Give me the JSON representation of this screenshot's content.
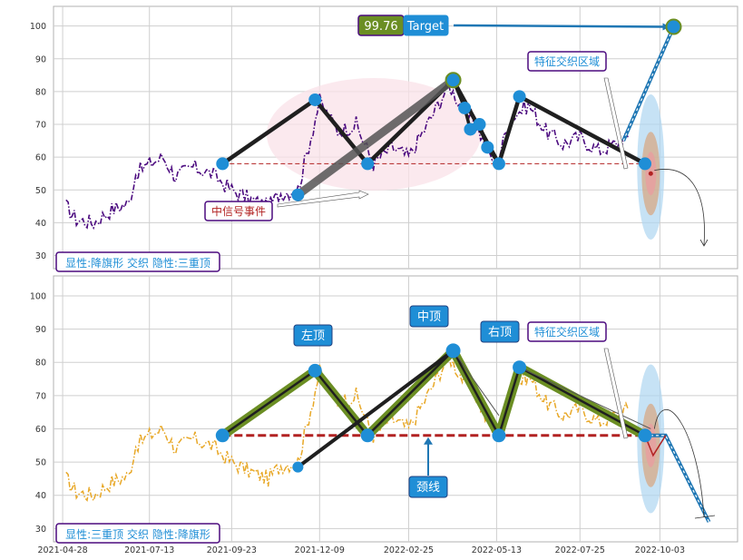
{
  "colors": {
    "plot_bg": "#ffffff",
    "grid": "#cfcfcf",
    "frame": "#b0b0b0",
    "top_price": "#4b0a7f",
    "bottom_price": "#e8a828",
    "pattern_line": "#1f1f1f",
    "pattern_highlight": "#6b8e23",
    "node": "#1f8ed6",
    "neckline": "#b22222",
    "target_arrow": "#1f77b4",
    "label_border": "#4b0a7f",
    "label_text_blue": "#1f8ed6",
    "label_text_red": "#b22222",
    "zone_blue": "#aed6f1",
    "zone_red": "#e6a0a0",
    "ellipse_pink": "#f9e1e8"
  },
  "chart_data": [
    {
      "type": "line",
      "panel": "top",
      "x_dates": [
        "2021-04-28",
        "2021-07-13",
        "2021-09-23",
        "2021-12-09",
        "2022-02-25",
        "2022-05-13",
        "2022-07-25",
        "2022-10-03"
      ],
      "x_tick_labels": [
        "2021-04-28",
        "2021-07-13",
        "2021-09-23",
        "2021-12-09",
        "2022-02-25",
        "2022-05-13",
        "2022-07-25",
        "2022-10-03"
      ],
      "ylim": [
        26,
        106
      ],
      "y_ticks": [
        30,
        40,
        50,
        60,
        70,
        80,
        90,
        100
      ],
      "grid": true,
      "series_price": [
        {
          "x": "2021-05-01",
          "y": 45
        },
        {
          "x": "2021-05-10",
          "y": 41
        },
        {
          "x": "2021-05-25",
          "y": 40
        },
        {
          "x": "2021-06-10",
          "y": 44
        },
        {
          "x": "2021-06-25",
          "y": 46
        },
        {
          "x": "2021-07-01",
          "y": 55
        },
        {
          "x": "2021-07-13",
          "y": 58
        },
        {
          "x": "2021-07-25",
          "y": 60
        },
        {
          "x": "2021-08-05",
          "y": 54
        },
        {
          "x": "2021-08-20",
          "y": 57
        },
        {
          "x": "2021-09-05",
          "y": 55
        },
        {
          "x": "2021-09-23",
          "y": 50
        },
        {
          "x": "2021-10-10",
          "y": 47
        },
        {
          "x": "2021-10-25",
          "y": 45
        },
        {
          "x": "2021-11-05",
          "y": 49
        },
        {
          "x": "2021-11-20",
          "y": 50
        },
        {
          "x": "2021-12-09",
          "y": 77
        },
        {
          "x": "2021-12-25",
          "y": 68
        },
        {
          "x": "2022-01-10",
          "y": 70
        },
        {
          "x": "2022-01-25",
          "y": 58
        },
        {
          "x": "2022-02-10",
          "y": 63
        },
        {
          "x": "2022-02-25",
          "y": 60
        },
        {
          "x": "2022-03-15",
          "y": 71
        },
        {
          "x": "2022-04-01",
          "y": 82
        },
        {
          "x": "2022-04-15",
          "y": 74
        },
        {
          "x": "2022-04-25",
          "y": 70
        },
        {
          "x": "2022-05-05",
          "y": 62
        },
        {
          "x": "2022-05-13",
          "y": 58
        },
        {
          "x": "2022-05-25",
          "y": 72
        },
        {
          "x": "2022-06-10",
          "y": 76
        },
        {
          "x": "2022-06-25",
          "y": 68
        },
        {
          "x": "2022-07-10",
          "y": 64
        },
        {
          "x": "2022-07-25",
          "y": 66
        },
        {
          "x": "2022-08-10",
          "y": 62
        },
        {
          "x": "2022-08-25",
          "y": 64
        },
        {
          "x": "2022-09-05",
          "y": 66
        }
      ],
      "pattern_path": [
        {
          "x": "2021-09-15",
          "y": 58
        },
        {
          "x": "2021-12-05",
          "y": 77.5
        },
        {
          "x": "2022-01-20",
          "y": 58
        },
        {
          "x": "2022-04-05",
          "y": 83.5
        },
        {
          "x": "2022-05-15",
          "y": 58
        },
        {
          "x": "2022-06-02",
          "y": 78.5
        },
        {
          "x": "2022-09-20",
          "y": 58
        }
      ],
      "extra_nodes": [
        {
          "x": "2021-11-20",
          "y": 48.5
        },
        {
          "x": "2022-04-15",
          "y": 75
        },
        {
          "x": "2022-04-28",
          "y": 70
        },
        {
          "x": "2022-04-20",
          "y": 68.5
        },
        {
          "x": "2022-05-05",
          "y": 63
        }
      ],
      "neckline_y": 58,
      "target": {
        "value": 99.76,
        "x": "2022-10-15"
      },
      "annotations": {
        "target_label": "Target",
        "zone_label": "特征交织区域",
        "event_label": "中信号事件",
        "pattern_label": "显性:降旗形 交织 隐性:三重顶"
      }
    },
    {
      "type": "line",
      "panel": "bottom",
      "x_dates": [
        "2021-04-28",
        "2021-07-13",
        "2021-09-23",
        "2021-12-09",
        "2022-02-25",
        "2022-05-13",
        "2022-07-25",
        "2022-10-03"
      ],
      "x_tick_labels": [
        "2021-04-28",
        "2021-07-13",
        "2021-09-23",
        "2021-12-09",
        "2022-02-25",
        "2022-05-13",
        "2022-07-25",
        "2022-10-03"
      ],
      "ylim": [
        26,
        106
      ],
      "y_ticks": [
        30,
        40,
        50,
        60,
        70,
        80,
        90,
        100
      ],
      "grid": true,
      "pattern_path": [
        {
          "x": "2021-09-15",
          "y": 58
        },
        {
          "x": "2021-12-05",
          "y": 77.5
        },
        {
          "x": "2022-01-20",
          "y": 58
        },
        {
          "x": "2022-04-05",
          "y": 83.5
        },
        {
          "x": "2022-05-15",
          "y": 58
        },
        {
          "x": "2022-06-02",
          "y": 78.5
        },
        {
          "x": "2022-09-20",
          "y": 58
        }
      ],
      "target_path": [
        {
          "x": "2022-09-20",
          "y": 58
        },
        {
          "x": "2022-10-08",
          "y": 58
        },
        {
          "x": "2022-11-15",
          "y": 32
        }
      ],
      "neckline_y": 58,
      "annotations": {
        "left_top": "左顶",
        "mid_top": "中顶",
        "right_top": "右顶",
        "neckline": "颈线",
        "zone_label": "特征交织区域",
        "pattern_label": "显性:三重顶 交织 隐性:降旗形"
      }
    }
  ],
  "target_value_text": "99.76"
}
